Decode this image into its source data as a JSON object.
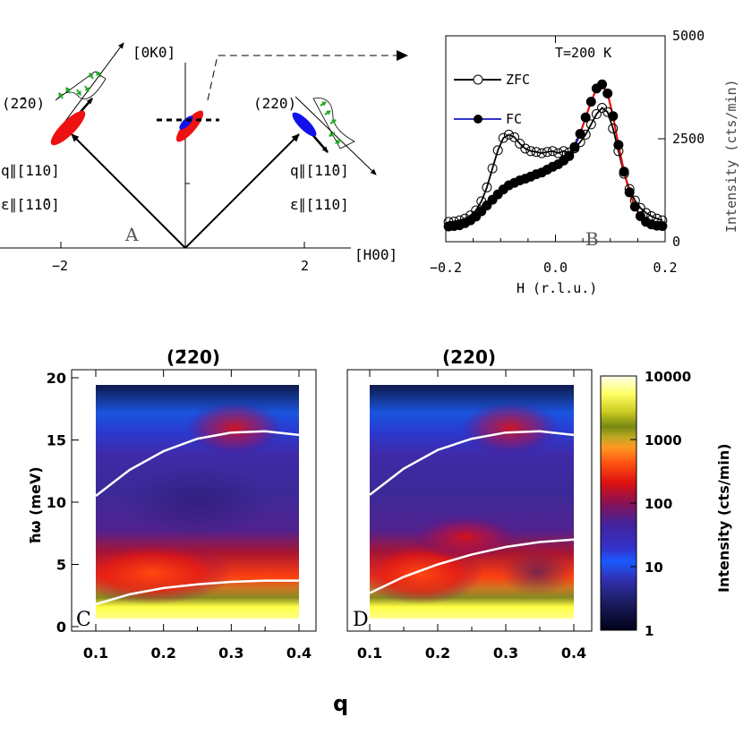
{
  "chart_data": [
    {
      "panel": "A",
      "type": "diagram",
      "x_axis_label": "[H00]",
      "y_axis_label": "[0K0]",
      "x_ticks": [
        -2,
        2
      ],
      "ticks_text": [
        "−2",
        "2"
      ],
      "left_peak": "(2̄20)",
      "right_peak": "(220)",
      "left_q": "q∥[110]",
      "left_eps": "ε∥[11̄0]",
      "right_q": "q∥[11̄0]",
      "right_eps": "ε∥[110]",
      "colors": {
        "ellipse_red": "#ee1111",
        "ellipse_blue": "#1111ee",
        "arrow_green": "#22aa22"
      }
    },
    {
      "panel": "B",
      "type": "line",
      "annotation": "T=200 K",
      "xlabel": "H (r.l.u.)",
      "ylabel": "Intensity (cts/min)",
      "xlim": [
        -0.2,
        0.2
      ],
      "ylim": [
        0,
        5000
      ],
      "x_ticks": [
        -0.2,
        0.0,
        0.2
      ],
      "x_tick_labels": [
        "−0.2",
        "0.0",
        "0.2"
      ],
      "y_ticks": [
        0,
        2500,
        5000
      ],
      "y_tick_labels": [
        "0",
        "2500",
        "5000"
      ],
      "legend": [
        "ZFC",
        "FC"
      ],
      "series": [
        {
          "name": "ZFC",
          "marker": "open-circle",
          "line_color": "#000000",
          "x": [
            -0.195,
            -0.185,
            -0.175,
            -0.165,
            -0.155,
            -0.145,
            -0.135,
            -0.125,
            -0.115,
            -0.105,
            -0.095,
            -0.085,
            -0.075,
            -0.065,
            -0.055,
            -0.045,
            -0.035,
            -0.025,
            -0.015,
            -0.005,
            0.005,
            0.015,
            0.025,
            0.035,
            0.045,
            0.055,
            0.065,
            0.075,
            0.085,
            0.095,
            0.105,
            0.115,
            0.125,
            0.135,
            0.145,
            0.155,
            0.165,
            0.175,
            0.185,
            0.195
          ],
          "y": [
            480,
            490,
            520,
            560,
            640,
            760,
            980,
            1320,
            1780,
            2220,
            2520,
            2600,
            2540,
            2380,
            2260,
            2200,
            2180,
            2150,
            2180,
            2200,
            2150,
            2200,
            2170,
            2270,
            2420,
            2600,
            2850,
            3100,
            3250,
            3150,
            2750,
            2200,
            1650,
            1280,
            1000,
            820,
            700,
            620,
            560,
            520
          ]
        },
        {
          "name": "FC",
          "marker": "filled-circle",
          "line_color": "#e01010",
          "x": [
            -0.195,
            -0.185,
            -0.175,
            -0.165,
            -0.155,
            -0.145,
            -0.135,
            -0.125,
            -0.115,
            -0.105,
            -0.095,
            -0.085,
            -0.075,
            -0.065,
            -0.055,
            -0.045,
            -0.035,
            -0.025,
            -0.015,
            -0.005,
            0.005,
            0.015,
            0.025,
            0.035,
            0.045,
            0.055,
            0.065,
            0.075,
            0.085,
            0.095,
            0.105,
            0.115,
            0.125,
            0.135,
            0.145,
            0.155,
            0.165,
            0.175,
            0.185,
            0.195
          ],
          "y": [
            370,
            380,
            400,
            450,
            520,
            610,
            740,
            880,
            1020,
            1150,
            1270,
            1370,
            1430,
            1490,
            1530,
            1580,
            1640,
            1680,
            1750,
            1820,
            1880,
            1970,
            2080,
            2300,
            2620,
            3020,
            3400,
            3720,
            3820,
            3600,
            3050,
            2350,
            1700,
            1200,
            850,
            620,
            480,
            420,
            390,
            380
          ]
        }
      ]
    },
    {
      "panel": "C",
      "type": "heatmap",
      "title": "(2̄20)",
      "xlabel": "q",
      "ylabel": "ħω (meV)",
      "xlim": [
        0.1,
        0.4
      ],
      "ylim": [
        0,
        20
      ],
      "x_ticks": [
        0.1,
        0.2,
        0.3,
        0.4
      ],
      "x_tick_labels": [
        "0.1",
        "0.2",
        "0.3",
        "0.4"
      ],
      "y_ticks": [
        0,
        5,
        10,
        15,
        20
      ],
      "y_tick_labels": [
        "0",
        "5",
        "10",
        "15",
        "20"
      ],
      "dispersion_upper": {
        "q": [
          0.1,
          0.15,
          0.2,
          0.25,
          0.3,
          0.35,
          0.4
        ],
        "E": [
          10.5,
          12.6,
          14.1,
          15.1,
          15.6,
          15.7,
          15.4
        ]
      },
      "dispersion_lower": {
        "q": [
          0.1,
          0.15,
          0.2,
          0.25,
          0.3,
          0.35,
          0.4
        ],
        "E": [
          1.8,
          2.6,
          3.1,
          3.4,
          3.6,
          3.7,
          3.7
        ]
      }
    },
    {
      "panel": "D",
      "type": "heatmap",
      "title": "(220)",
      "xlabel": "q",
      "xlim": [
        0.1,
        0.4
      ],
      "ylim": [
        0,
        20
      ],
      "x_ticks": [
        0.1,
        0.2,
        0.3,
        0.4
      ],
      "x_tick_labels": [
        "0.1",
        "0.2",
        "0.3",
        "0.4"
      ],
      "dispersion_upper": {
        "q": [
          0.1,
          0.15,
          0.2,
          0.25,
          0.3,
          0.35,
          0.4
        ],
        "E": [
          10.6,
          12.7,
          14.2,
          15.1,
          15.6,
          15.7,
          15.4
        ]
      },
      "dispersion_lower": {
        "q": [
          0.1,
          0.15,
          0.2,
          0.25,
          0.3,
          0.35,
          0.4
        ],
        "E": [
          2.7,
          4.0,
          5.0,
          5.8,
          6.4,
          6.8,
          7.0
        ]
      }
    },
    {
      "panel": "colorbar",
      "type": "colorbar",
      "label": "Intensity (cts/min)",
      "scale": "log",
      "range": [
        1,
        10000
      ],
      "tick_labels": [
        "1",
        "10",
        "100",
        "1000",
        "10000"
      ]
    }
  ],
  "labels": {
    "A": "A",
    "B": "B",
    "C": "C",
    "D": "D",
    "q_axis": "q"
  }
}
